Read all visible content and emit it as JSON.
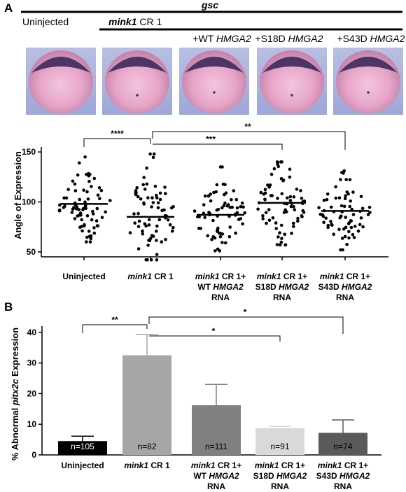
{
  "figure": {
    "panel_a_letter": "A",
    "panel_b_letter": "B",
    "gsc_label": "gsc",
    "uninjected_label": "Uninjected",
    "mink1_gene": "mink1",
    "cr1_suffix": " CR 1",
    "embryo_labels": [
      {
        "prefix": "+WT ",
        "gene": "HMGA2"
      },
      {
        "prefix": "+S18D ",
        "gene": "HMGA2"
      },
      {
        "prefix": "+S43D ",
        "gene": "HMGA2"
      }
    ],
    "group_labels": [
      {
        "line1_gene": "",
        "line1": "Uninjected",
        "line2_pre": "",
        "line2_gene": "",
        "line3": ""
      },
      {
        "line1_gene": "mink1",
        "line1": " CR 1",
        "line2_pre": "",
        "line2_gene": "",
        "line3": ""
      },
      {
        "line1_gene": "mink1",
        "line1": " CR 1+",
        "line2_pre": "WT ",
        "line2_gene": "HMGA2",
        "line3": "RNA"
      },
      {
        "line1_gene": "mink1",
        "line1": " CR 1+",
        "line2_pre": "S18D ",
        "line2_gene": "HMGA2",
        "line3": "RNA"
      },
      {
        "line1_gene": "mink1",
        "line1": " CR 1+",
        "line2_pre": "S43D  ",
        "line2_gene": "HMGA2",
        "line3": "RNA"
      }
    ]
  },
  "chart_data": [
    {
      "type": "scatter",
      "ylabel": "Angle of Expression",
      "ylim": [
        45,
        155
      ],
      "yticks": [
        50,
        100,
        150
      ],
      "categories": [
        "Uninjected",
        "mink1 CR 1",
        "mink1 CR 1+ WT HMGA2 RNA",
        "mink1 CR 1+ S18D HMGA2 RNA",
        "mink1 CR 1+ S43D HMGA2 RNA"
      ],
      "means": [
        98,
        85,
        87,
        99,
        91
      ],
      "point_counts": [
        75,
        72,
        70,
        75,
        70
      ],
      "ranges": [
        [
          60,
          145
        ],
        [
          42,
          148
        ],
        [
          51,
          135
        ],
        [
          57,
          140
        ],
        [
          52,
          131
        ]
      ],
      "significance": [
        {
          "from": 0,
          "to": 1,
          "label": "****"
        },
        {
          "from": 1,
          "to": 3,
          "label": "***"
        },
        {
          "from": 1,
          "to": 4,
          "label": "**"
        }
      ]
    },
    {
      "type": "bar",
      "ylabel": "% Abnormal pitx2c Expression",
      "ylabel_pre": "% Abnormal ",
      "ylabel_gene": "pitx2c",
      "ylabel_post": " Expression",
      "ylim": [
        0,
        42
      ],
      "yticks": [
        0,
        10,
        20,
        30,
        40
      ],
      "categories": [
        "Uninjected",
        "mink1 CR 1",
        "mink1 CR 1+ WT HMGA2 RNA",
        "mink1 CR 1+ S18D HMGA2 RNA",
        "mink1 CR 1+ S43D HMGA2 RNA"
      ],
      "values": [
        4.5,
        32.5,
        16.2,
        8.7,
        7.2
      ],
      "errors": [
        1.6,
        6.8,
        6.8,
        0.6,
        4.2
      ],
      "n_labels": [
        "n=105",
        "n=82",
        "n=111",
        "n=91",
        "n=74"
      ],
      "colors": [
        "#000000",
        "#a6a6a6",
        "#808080",
        "#d9d9d9",
        "#5a5a5a"
      ],
      "n_label_colors": [
        "#ffffff",
        "#000000",
        "#000000",
        "#000000",
        "#000000"
      ],
      "significance": [
        {
          "from": 0,
          "to": 1,
          "label": "**"
        },
        {
          "from": 1,
          "to": 3,
          "label": "*"
        },
        {
          "from": 1,
          "to": 4,
          "label": "*"
        }
      ]
    }
  ]
}
